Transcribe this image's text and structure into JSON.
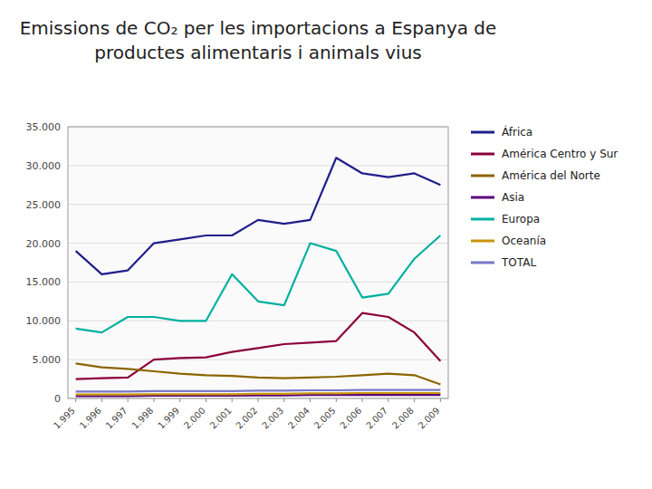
{
  "chart_data": {
    "type": "line",
    "title": "Emissions de CO₂ per les importacions a Espanya de productes alimentaris i animals vius",
    "x": [
      1995,
      1996,
      1997,
      1998,
      1999,
      2000,
      2001,
      2002,
      2003,
      2004,
      2005,
      2006,
      2007,
      2008,
      2009
    ],
    "xlim": [
      1994.7,
      2009.3
    ],
    "xticks": [
      {
        "value": 1995,
        "label": "1.995"
      },
      {
        "value": 1996,
        "label": "1.996"
      },
      {
        "value": 1997,
        "label": "1.997"
      },
      {
        "value": 1998,
        "label": "1.998"
      },
      {
        "value": 1999,
        "label": "1.999"
      },
      {
        "value": 2000,
        "label": "2.000"
      },
      {
        "value": 2001,
        "label": "2.001"
      },
      {
        "value": 2002,
        "label": "2.002"
      },
      {
        "value": 2003,
        "label": "2.003"
      },
      {
        "value": 2004,
        "label": "2.004"
      },
      {
        "value": 2005,
        "label": "2.005"
      },
      {
        "value": 2006,
        "label": "2.006"
      },
      {
        "value": 2007,
        "label": "2.007"
      },
      {
        "value": 2008,
        "label": "2.008"
      },
      {
        "value": 2009,
        "label": "2.009"
      }
    ],
    "ylim": [
      0,
      35000
    ],
    "yticks": [
      0,
      {
        "value": 5000,
        "label": "5.000"
      },
      {
        "value": 10000,
        "label": "10.000"
      },
      {
        "value": 15000,
        "label": "15.000"
      },
      {
        "value": 20000,
        "label": "20.000"
      },
      {
        "value": 25000,
        "label": "25.000"
      },
      {
        "value": 30000,
        "label": "30.000"
      },
      {
        "value": 35000,
        "label": "35.000"
      }
    ],
    "grid": true,
    "legend": "right",
    "series": [
      {
        "name": "África",
        "color": "#1F1F8B",
        "values": [
          19000,
          16000,
          16500,
          20000,
          20500,
          21000,
          21000,
          23000,
          22500,
          23000,
          31000,
          29000,
          28500,
          29000,
          27500
        ]
      },
      {
        "name": "América Centro y Sur",
        "color": "#8B003B",
        "values": [
          2500,
          2600,
          2700,
          5000,
          5200,
          5300,
          6000,
          6500,
          7000,
          7200,
          7400,
          11000,
          10500,
          8500,
          4800
        ]
      },
      {
        "name": "América del Norte",
        "color": "#8B6500",
        "values": [
          4500,
          4000,
          3800,
          3500,
          3200,
          3000,
          2900,
          2700,
          2600,
          2700,
          2800,
          3000,
          3200,
          3000,
          1800
        ]
      },
      {
        "name": "Asia",
        "color": "#5B007B",
        "values": [
          300,
          300,
          300,
          350,
          350,
          350,
          350,
          400,
          400,
          450,
          450,
          450,
          450,
          450,
          450
        ]
      },
      {
        "name": "Europa",
        "color": "#00B0A0",
        "values": [
          9000,
          8500,
          10500,
          10500,
          10000,
          10000,
          16000,
          12500,
          12000,
          20000,
          19000,
          13000,
          13500,
          18000,
          21000
        ]
      },
      {
        "name": "Oceanía",
        "color": "#C8960A",
        "values": [
          500,
          500,
          500,
          550,
          550,
          550,
          550,
          600,
          600,
          650,
          650,
          700,
          700,
          700,
          700
        ]
      },
      {
        "name": "TOTAL",
        "color": "#7878C8",
        "values": [
          900,
          900,
          900,
          950,
          950,
          950,
          950,
          1000,
          1000,
          1050,
          1050,
          1100,
          1100,
          1100,
          1100
        ]
      }
    ]
  }
}
